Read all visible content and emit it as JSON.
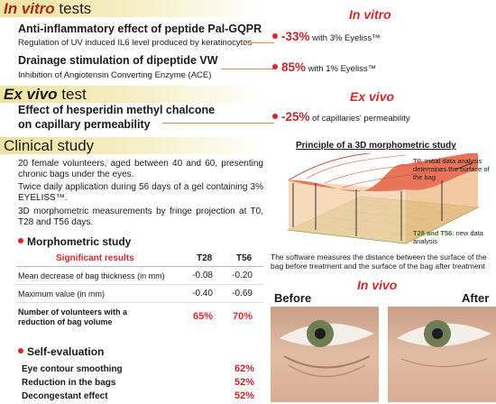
{
  "in_vitro": {
    "header": {
      "italic": "In vitro",
      "rest": "tests"
    },
    "panel_title": "In vitro",
    "items": [
      {
        "title": "Anti-inflammatory effect of peptide Pal-GQPR",
        "subtitle": "Regulation of UV induced IL6 level produced by keratinocytes",
        "result": {
          "value": "-33%",
          "text": "with 3% Eyeliss™"
        }
      },
      {
        "title": "Drainage stimulation of dipeptide VW",
        "subtitle": "Inhibition of Angiotensin Converting Enzyme (ACE)",
        "result": {
          "value": "85%",
          "text": "with 1% Eyeliss™"
        }
      }
    ]
  },
  "ex_vivo": {
    "header": {
      "italic": "Ex vivo",
      "rest": "test"
    },
    "panel_title": "Ex vivo",
    "item": {
      "title_lines": [
        "Effect of hesperidin methyl chalcone",
        "on capillary permeability"
      ],
      "result": {
        "value": "-25%",
        "text": "of capillaries' permeability"
      }
    }
  },
  "clinical": {
    "header": "Clinical study",
    "paragraphs": [
      "20 female volunteers, aged between 40 and 60, presenting chronic bags under the eyes.",
      "Twice daily application during 56 days of a gel containing 3% EYELISS™.",
      "3D morphometric measurements by fringe projection at T0, T28 and T56 days."
    ],
    "morphometric": {
      "title": "Morphometric study",
      "table": {
        "header": [
          "Significant results",
          "T28",
          "T56"
        ],
        "rows": [
          [
            "Mean decrease of bag thickness (in mm)",
            "-0.08",
            "-0.20"
          ],
          [
            "Maximum value (in mm)",
            "-0.40",
            "-0.69"
          ],
          [
            "Number of volunteers with a reduction of bag volume",
            "65%",
            "70%"
          ]
        ]
      }
    },
    "self_evaluation": {
      "title": "Self-evaluation",
      "rows": [
        [
          "Eye contour smoothing",
          "62%"
        ],
        [
          "Reduction in the bags",
          "52%"
        ],
        [
          "Decongestant effect",
          "52%"
        ]
      ]
    }
  },
  "diagram": {
    "title": "Principle of a 3D morphometric study",
    "t0_label": "T0",
    "t0_note": ": Initial data analysis determines the surface of the bag",
    "t28_label": "T28 and T56",
    "t28_note": ": new data analysis",
    "caption": "The software measures the distance between the surface of the bag before treatment and the surface of the bag after treatment"
  },
  "in_vivo": {
    "title": "In vivo",
    "before": "Before",
    "after": "After"
  }
}
